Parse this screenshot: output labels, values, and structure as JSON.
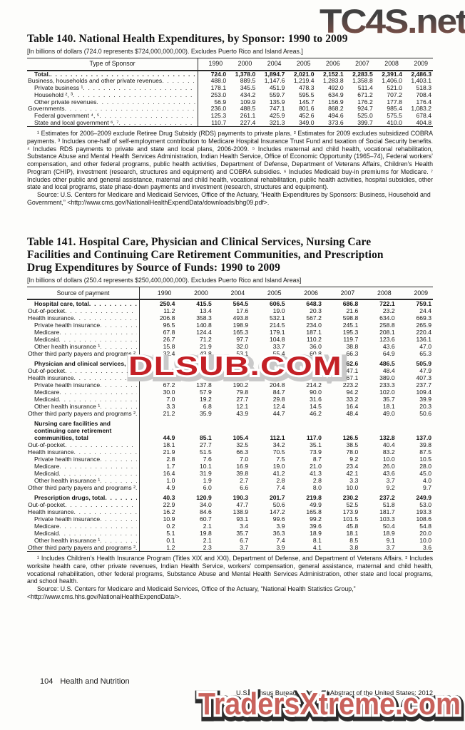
{
  "watermarks": {
    "top": "TC4S.net",
    "middle": "DLSUB.COM",
    "bottom": "TradersXtreme.com"
  },
  "table140": {
    "title": "Table 140. National Health Expenditures, by Sponsor: 1990 to 2009",
    "subtitle": "[In billions of dollars (724.0 represents $724,000,000,000). Excludes Puerto Rico and Island Areas.]",
    "col_header": "Type of Sponsor",
    "years": [
      "1990",
      "2000",
      "2004",
      "2005",
      "2006",
      "2007",
      "2008",
      "2009"
    ],
    "rows": [
      {
        "label": "Total.",
        "indent": 1,
        "bold": true,
        "values": [
          "724.0",
          "1,378.0",
          "1,894.7",
          "2,021.0",
          "2,152.1",
          "2,283.5",
          "2,391.4",
          "2,486.3"
        ]
      },
      {
        "label": "Business, households and other private revenues",
        "indent": 0,
        "values": [
          "488.0",
          "889.5",
          "1,147.6",
          "1,219.4",
          "1,283.8",
          "1,358.8",
          "1,406.0",
          "1,403.1"
        ]
      },
      {
        "label": "Private business ¹",
        "indent": 1,
        "values": [
          "178.1",
          "345.5",
          "451.9",
          "478.3",
          "492.0",
          "511.4",
          "521.0",
          "518.3"
        ]
      },
      {
        "label": "Household ², ³",
        "indent": 1,
        "values": [
          "253.0",
          "434.2",
          "559.7",
          "595.5",
          "634.9",
          "671.2",
          "707.2",
          "708.4"
        ]
      },
      {
        "label": "Other private revenues",
        "indent": 1,
        "values": [
          "56.9",
          "109.9",
          "135.9",
          "145.7",
          "156.9",
          "176.2",
          "177.8",
          "176.4"
        ]
      },
      {
        "label": "Governments",
        "indent": 0,
        "values": [
          "236.0",
          "488.5",
          "747.1",
          "801.6",
          "868.2",
          "924.7",
          "985.4",
          "1,083.2"
        ]
      },
      {
        "label": "Federal government ⁴, ⁵",
        "indent": 1,
        "values": [
          "125.3",
          "261.1",
          "425.9",
          "452.6",
          "494.6",
          "525.0",
          "575.5",
          "678.4"
        ]
      },
      {
        "label": "State and local government ⁶, ⁷",
        "indent": 1,
        "values": [
          "110.7",
          "227.4",
          "321.3",
          "349.0",
          "373.6",
          "399.7",
          "410.0",
          "404.8"
        ]
      }
    ],
    "footnotes": "¹ Estimates for 2006–2009 exclude Retiree Drug Subsidy (RDS) payments to private plans. ² Estimates for 2009 excludes subsidized COBRA payments. ³ Includes one-half of self-employment contribution to Medicare Hospital Insurance Trust Fund and taxation of Social Security benefits. ⁴ Includes RDS payments to private and state and local plans, 2006-2009. ⁵ Includes maternal and child health, vocational rehabilitation, Substance Abuse and Mental Health Services Administration, Indian Health Service, Office of Economic Opportunity (1965–74), Federal workers’ compensation, and other federal programs, public health activities, Department of Defense, Department of Veterans Affairs, Children’s Health Program (CHIP), investment (research, structures and equipment) and COBRA subsidies. ⁶ Includes Medicaid buy-in premiums for Medicare. ⁷ Includes other public and general assistance, maternal and child health, vocational rehabilitation, public health activities, hospital subsidies, other state and local programs, state phase-down payments and investment (research, structures and equipment).",
    "source": "Source: U.S. Centers for Medicare and Medicaid Services, Office of the Actuary, “Health Expenditures by Sponsors: Business, Household and Government,” <http://www.cms.gov/NationalHealthExpendData/downloads/bhg09.pdf>."
  },
  "table141": {
    "title": "Table 141. Hospital Care, Physician and Clinical Services, Nursing Care\nFacilities and Continuing Care Retirement Communities, and Prescription\nDrug Expenditures by Source of Funds: 1990 to 2009",
    "subtitle": "[In billions of dollars (250.4 represents $250,400,000,000). Excludes Puerto Rico and Island Areas]",
    "col_header": "Source of payment",
    "years": [
      "1990",
      "2000",
      "2004",
      "2005",
      "2006",
      "2007",
      "2008",
      "2009"
    ],
    "rows": [
      {
        "label": "Hospital care, total",
        "indent": 1,
        "bold": true,
        "values": [
          "250.4",
          "415.5",
          "564.5",
          "606.5",
          "648.3",
          "686.8",
          "722.1",
          "759.1"
        ]
      },
      {
        "label": "Out-of-pocket",
        "indent": 0,
        "values": [
          "11.2",
          "13.4",
          "17.6",
          "19.0",
          "20.3",
          "21.6",
          "23.2",
          "24.4"
        ]
      },
      {
        "label": "Health insurance",
        "indent": 0,
        "values": [
          "206.8",
          "358.3",
          "493.8",
          "532.1",
          "567.2",
          "598.8",
          "634.0",
          "669.3"
        ]
      },
      {
        "label": "Private health insurance",
        "indent": 1,
        "values": [
          "96.5",
          "140.8",
          "198.9",
          "214.5",
          "234.0",
          "245.1",
          "258.8",
          "265.9"
        ]
      },
      {
        "label": "Medicare",
        "indent": 1,
        "values": [
          "67.8",
          "124.4",
          "165.3",
          "179.1",
          "187.1",
          "195.3",
          "208.1",
          "220.4"
        ]
      },
      {
        "label": "Medicaid",
        "indent": 1,
        "values": [
          "26.7",
          "71.2",
          "97.7",
          "104.8",
          "110.2",
          "119.7",
          "123.6",
          "136.1"
        ]
      },
      {
        "label": "Other health insurance ¹",
        "indent": 1,
        "values": [
          "15.8",
          "21.9",
          "32.0",
          "33.7",
          "36.0",
          "38.8",
          "43.6",
          "47.0"
        ]
      },
      {
        "label": "Other third party payers and programs ²",
        "indent": 0,
        "values": [
          "32.4",
          "43.8",
          "53.1",
          "55.4",
          "60.8",
          "66.3",
          "64.9",
          "65.3"
        ]
      },
      {
        "label": "Physician and clinical services, total",
        "indent": 1,
        "bold": true,
        "gap": true,
        "values": [
          "",
          "",
          "",
          "",
          "",
          "462.6",
          "486.5",
          "505.9"
        ]
      },
      {
        "label": "Out-of-pocket",
        "indent": 0,
        "values": [
          "",
          "",
          "",
          "",
          "",
          "47.1",
          "48.4",
          "47.9"
        ]
      },
      {
        "label": "Health insurance",
        "indent": 0,
        "values": [
          "",
          "",
          "",
          "",
          "",
          "367.1",
          "389.0",
          "407.3"
        ]
      },
      {
        "label": "Private health insurance",
        "indent": 1,
        "values": [
          "67.2",
          "137.8",
          "190.2",
          "204.8",
          "214.2",
          "223.2",
          "233.3",
          "237.7"
        ]
      },
      {
        "label": "Medicare",
        "indent": 1,
        "values": [
          "30.0",
          "57.9",
          "79.8",
          "84.7",
          "90.0",
          "94.2",
          "102.0",
          "109.4"
        ]
      },
      {
        "label": "Medicaid",
        "indent": 1,
        "values": [
          "7.0",
          "19.2",
          "27.7",
          "29.8",
          "31.6",
          "33.2",
          "35.7",
          "39.9"
        ]
      },
      {
        "label": "Other health insurance ¹",
        "indent": 1,
        "values": [
          "3.3",
          "6.8",
          "12.1",
          "12.4",
          "14.5",
          "16.4",
          "18.1",
          "20.3"
        ]
      },
      {
        "label": "Other third party payers and programs ²",
        "indent": 0,
        "values": [
          "21.2",
          "35.9",
          "43.9",
          "44.7",
          "46.2",
          "48.4",
          "49.0",
          "50.6"
        ]
      },
      {
        "label": "Nursing care facilities and continuing care retirement communities, total",
        "indent": 1,
        "bold": true,
        "gap": true,
        "wrap": true,
        "values": [
          "44.9",
          "85.1",
          "105.4",
          "112.1",
          "117.0",
          "126.5",
          "132.8",
          "137.0"
        ]
      },
      {
        "label": "Out-of-pocket",
        "indent": 0,
        "values": [
          "18.1",
          "27.7",
          "32.5",
          "34.2",
          "35.1",
          "38.5",
          "40.4",
          "39.8"
        ]
      },
      {
        "label": "Health insurance",
        "indent": 0,
        "values": [
          "21.9",
          "51.5",
          "66.3",
          "70.5",
          "73.9",
          "78.0",
          "83.2",
          "87.5"
        ]
      },
      {
        "label": "Private health insurance",
        "indent": 1,
        "values": [
          "2.8",
          "7.6",
          "7.0",
          "7.5",
          "8.7",
          "9.2",
          "10.0",
          "10.5"
        ]
      },
      {
        "label": "Medicare",
        "indent": 1,
        "values": [
          "1.7",
          "10.1",
          "16.9",
          "19.0",
          "21.0",
          "23.4",
          "26.0",
          "28.0"
        ]
      },
      {
        "label": "Medicaid",
        "indent": 1,
        "values": [
          "16.4",
          "31.9",
          "39.8",
          "41.2",
          "41.3",
          "42.1",
          "43.6",
          "45.0"
        ]
      },
      {
        "label": "Other health insurance ¹",
        "indent": 1,
        "values": [
          "1.0",
          "1.9",
          "2.7",
          "2.8",
          "2.8",
          "3.3",
          "3.7",
          "4.0"
        ]
      },
      {
        "label": "Other third party payers and programs ²",
        "indent": 0,
        "values": [
          "4.9",
          "6.0",
          "6.6",
          "7.4",
          "8.0",
          "10.0",
          "9.2",
          "9.7"
        ]
      },
      {
        "label": "Prescription drugs, total",
        "indent": 1,
        "bold": true,
        "gap": true,
        "values": [
          "40.3",
          "120.9",
          "190.3",
          "201.7",
          "219.8",
          "230.2",
          "237.2",
          "249.9"
        ]
      },
      {
        "label": "Out-of-pocket",
        "indent": 0,
        "values": [
          "22.9",
          "34.0",
          "47.7",
          "50.6",
          "49.9",
          "52.5",
          "51.8",
          "53.0"
        ]
      },
      {
        "label": "Health insurance",
        "indent": 0,
        "values": [
          "16.2",
          "84.6",
          "138.9",
          "147.2",
          "165.8",
          "173.9",
          "181.7",
          "193.3"
        ]
      },
      {
        "label": "Private health insurance",
        "indent": 1,
        "values": [
          "10.9",
          "60.7",
          "93.1",
          "99.6",
          "99.2",
          "101.5",
          "103.3",
          "108.6"
        ]
      },
      {
        "label": "Medicare",
        "indent": 1,
        "values": [
          "0.2",
          "2.1",
          "3.4",
          "3.9",
          "39.6",
          "45.8",
          "50.4",
          "54.8"
        ]
      },
      {
        "label": "Medicaid",
        "indent": 1,
        "values": [
          "5.1",
          "19.8",
          "35.7",
          "36.3",
          "18.9",
          "18.1",
          "18.9",
          "20.0"
        ]
      },
      {
        "label": "Other health insurance ¹",
        "indent": 1,
        "values": [
          "0.1",
          "2.1",
          "6.7",
          "7.4",
          "8.1",
          "8.5",
          "9.1",
          "10.0"
        ]
      },
      {
        "label": "Other third party payers and programs ²",
        "indent": 0,
        "values": [
          "1.2",
          "2.3",
          "3.7",
          "3.9",
          "4.1",
          "3.8",
          "3.7",
          "3.6"
        ]
      }
    ],
    "footnotes": "¹ Includes Children’s Health Insurance Program (Titles XIX and XXI), Department of Defense, and Department of Veterans Affairs. ² Includes worksite health care, other private revenues, Indian Health Service, workers’ compensation, general assistance, maternal and child health, vocational rehabilitation, other federal programs, Substance Abuse and Mental Health Services Administration, other state and local programs, and school health.",
    "source": "Source: U.S. Centers for Medicare and Medicaid Services, Office of the Actuary, “National Health Statistics Group,” <http://www.cms.hhs.gov/NationalHealthExpendData/>."
  },
  "footer": {
    "page_number": "104",
    "section": "Health and Nutrition",
    "census": "U.S. Census Bureau, Statistical Abstract of the United States: 2012"
  },
  "colors": {
    "watermark_top_dark": "#414141",
    "watermark_top_red": "#8a544a",
    "watermark_mid_red": "#c42026",
    "watermark_bottom_red": "#c9625c"
  }
}
